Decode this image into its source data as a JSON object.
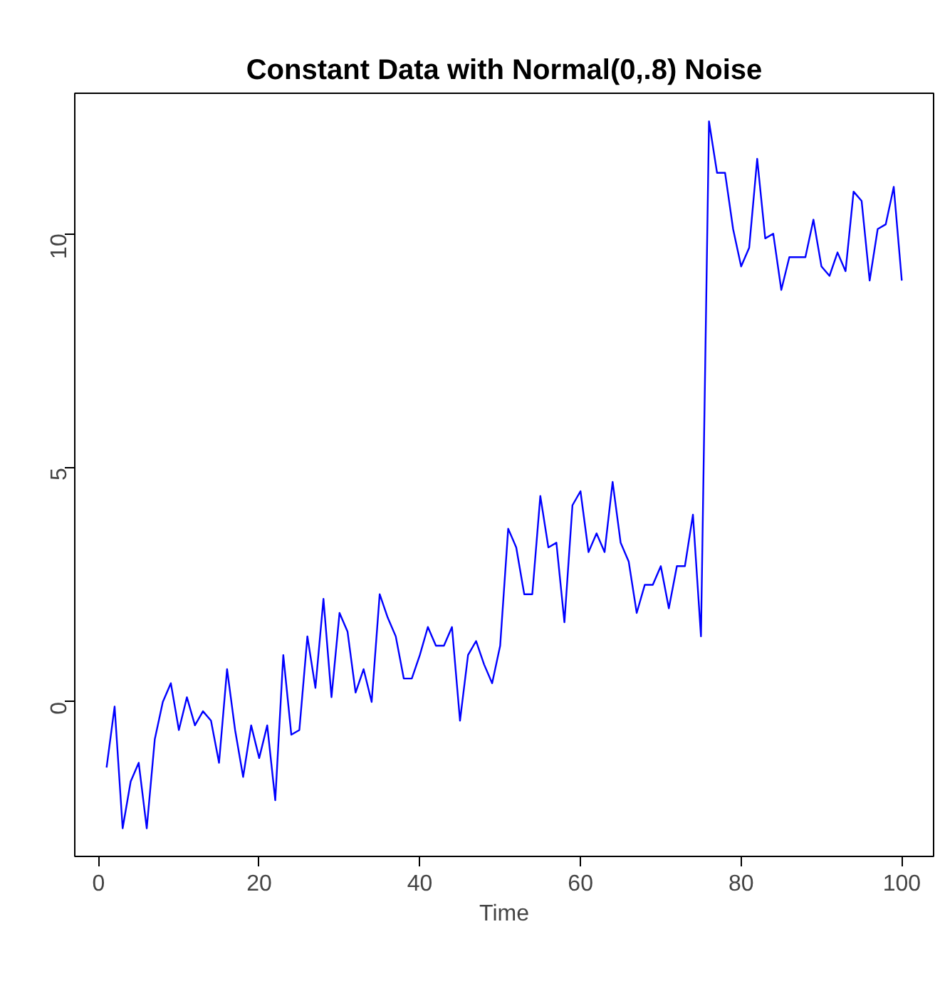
{
  "chart_data": {
    "type": "line",
    "title": "Constant Data with Normal(0,.8) Noise",
    "xlabel": "Time",
    "x": [
      1,
      2,
      3,
      4,
      5,
      6,
      7,
      8,
      9,
      10,
      11,
      12,
      13,
      14,
      15,
      16,
      17,
      18,
      19,
      20,
      21,
      22,
      23,
      24,
      25,
      26,
      27,
      28,
      29,
      30,
      31,
      32,
      33,
      34,
      35,
      36,
      37,
      38,
      39,
      40,
      41,
      42,
      43,
      44,
      45,
      46,
      47,
      48,
      49,
      50,
      51,
      52,
      53,
      54,
      55,
      56,
      57,
      58,
      59,
      60,
      61,
      62,
      63,
      64,
      65,
      66,
      67,
      68,
      69,
      70,
      71,
      72,
      73,
      74,
      75,
      76,
      77,
      78,
      79,
      80,
      81,
      82,
      83,
      84,
      85,
      86,
      87,
      88,
      89,
      90,
      91,
      92,
      93,
      94,
      95,
      96,
      97,
      98,
      99,
      100
    ],
    "series": [
      {
        "color": "#0000ff",
        "values": [
          -1.4,
          -0.1,
          -2.7,
          -1.7,
          -1.3,
          -2.7,
          -0.8,
          0.0,
          0.4,
          -0.6,
          0.1,
          -0.5,
          -0.2,
          -0.4,
          -1.3,
          0.7,
          -0.6,
          -1.6,
          -0.5,
          -1.2,
          -0.5,
          -2.1,
          1.0,
          -0.7,
          -0.6,
          1.4,
          0.3,
          2.2,
          0.1,
          1.9,
          1.5,
          0.2,
          0.7,
          0.0,
          2.3,
          1.8,
          1.4,
          0.5,
          0.5,
          1.0,
          1.6,
          1.2,
          1.2,
          1.6,
          -0.4,
          1.0,
          1.3,
          0.8,
          0.4,
          1.2,
          3.7,
          3.3,
          2.3,
          2.3,
          4.4,
          3.3,
          3.4,
          1.7,
          4.2,
          4.5,
          3.2,
          3.6,
          3.2,
          4.7,
          3.4,
          3.0,
          1.9,
          2.5,
          2.5,
          2.9,
          2.0,
          2.9,
          2.9,
          4.0,
          1.4,
          12.4,
          11.3,
          11.3,
          10.1,
          9.3,
          9.7,
          11.6,
          9.9,
          10.0,
          8.8,
          9.5,
          9.5,
          9.5,
          10.3,
          9.3,
          9.1,
          9.6,
          9.2,
          10.9,
          10.7,
          9.0,
          10.1,
          10.2,
          11.0,
          9.0
        ]
      }
    ],
    "xlim": [
      -2.96,
      103.96
    ],
    "ylim": [
      -3.3,
      13.0
    ],
    "xticks": [
      0,
      20,
      40,
      60,
      80,
      100
    ],
    "yticks": [
      0,
      5,
      10
    ],
    "grid": false,
    "line_style": "solid",
    "marker": "none"
  }
}
